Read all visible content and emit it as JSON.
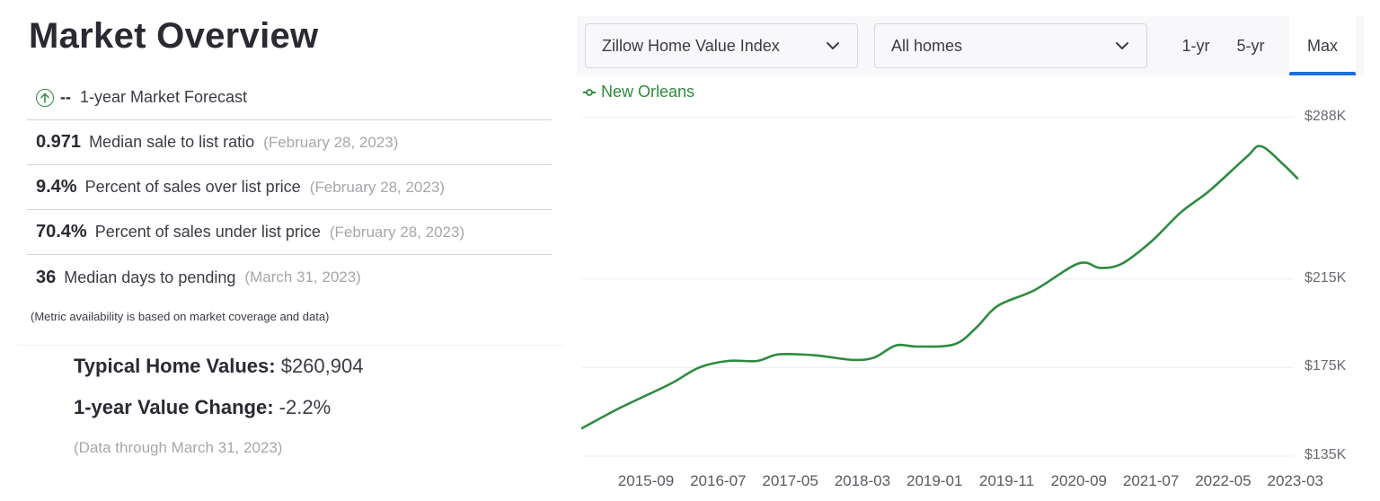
{
  "left_panel": {
    "title": "Market Overview",
    "forecast": {
      "icon": "arrow-up-circle-icon",
      "value": "--",
      "label": "1-year Market Forecast"
    },
    "metrics": [
      {
        "value": "0.971",
        "label": "Median sale to list ratio",
        "date": "(February 28, 2023)"
      },
      {
        "value": "9.4%",
        "label": "Percent of sales over list price",
        "date": "(February 28, 2023)"
      },
      {
        "value": "70.4%",
        "label": "Percent of sales under list price",
        "date": "(February 28, 2023)"
      },
      {
        "value": "36",
        "label": "Median days to pending",
        "date": "(March 31, 2023)"
      }
    ],
    "note": "(Metric availability is based on market coverage and data)",
    "typical_home_values_label": "Typical Home Values:",
    "typical_home_values": "$260,904",
    "value_change_label": "1-year Value Change:",
    "value_change": "-2.2%",
    "data_through": "(Data through March 31, 2023)"
  },
  "toolbar": {
    "metric_select": "Zillow Home Value Index",
    "home_type_select": "All homes",
    "ranges": [
      "1-yr",
      "5-yr",
      "Max"
    ],
    "active_range": "Max"
  },
  "colors": {
    "line": "#2e8b3f",
    "active_tab_underline": "#1a6fe0",
    "gridline": "#eeeeee"
  },
  "chart_data": {
    "type": "line",
    "title": "",
    "xlabel": "",
    "ylabel": "",
    "legend": [
      "New Orleans"
    ],
    "legend_position": "top-left",
    "grid": true,
    "y_ticks": [
      "$288K",
      "$215K",
      "$175K",
      "$135K"
    ],
    "y_tick_values": [
      288,
      215,
      175,
      135
    ],
    "ylim": [
      135,
      288
    ],
    "x_ticks": [
      "2015-09",
      "2016-07",
      "2017-05",
      "2018-03",
      "2019-01",
      "2019-11",
      "2020-09",
      "2021-07",
      "2022-05",
      "2023-03"
    ],
    "series": [
      {
        "name": "New Orleans",
        "unit": "$K",
        "x": [
          "2015-01",
          "2015-06",
          "2016-01",
          "2016-05",
          "2016-09",
          "2017-01",
          "2017-04",
          "2017-09",
          "2018-02",
          "2018-05",
          "2018-08",
          "2018-11",
          "2019-04",
          "2019-07",
          "2019-10",
          "2020-03",
          "2020-09",
          "2020-12",
          "2021-03",
          "2021-07",
          "2021-11",
          "2022-03",
          "2022-08",
          "2022-10",
          "2023-01",
          "2023-03"
        ],
        "values": [
          147.6,
          156.5,
          167.5,
          175.0,
          178.0,
          178.0,
          181.0,
          180.5,
          178.5,
          179.5,
          185.0,
          184.5,
          185.5,
          193.0,
          203.0,
          210.0,
          222.0,
          220.0,
          222.0,
          232.0,
          245.0,
          255.0,
          270.0,
          275.0,
          267.0,
          260.5
        ]
      }
    ]
  }
}
